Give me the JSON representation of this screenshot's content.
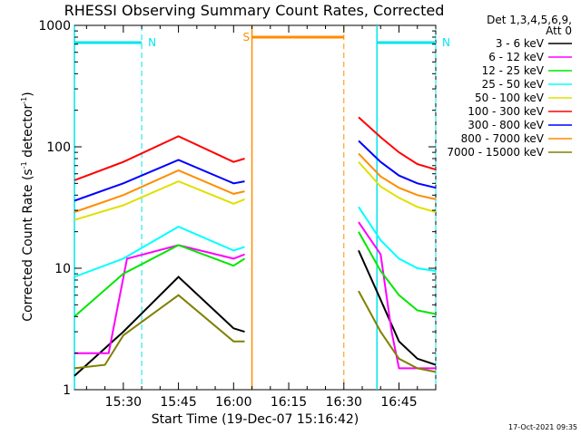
{
  "chart_data": {
    "type": "line",
    "title": "RHESSI Observing Summary Count Rates, Corrected",
    "xlabel": "Start Time (19-Dec-07 15:16:42)",
    "ylabel": "Corrected Count Rate (s⁻¹ detector⁻¹)",
    "ylabel_parts": {
      "pre": "Corrected Count Rate (s",
      "sup1": "-1",
      "mid": " detector",
      "sup2": "-1",
      "post": ")"
    },
    "y_scale": "log",
    "ylim": [
      1,
      1000
    ],
    "y_ticks": [
      1,
      10,
      100,
      1000
    ],
    "y_tick_labels": [
      "1",
      "10",
      "100",
      "1000"
    ],
    "xlim": [
      "15:16:42",
      "16:55:00"
    ],
    "x_ticks": [
      "15:30",
      "15:45",
      "16:00",
      "16:15",
      "16:30",
      "16:45"
    ],
    "grid": false,
    "legend_position": "right",
    "legend_header": [
      "Det 1,3,4,5,6,9,",
      "Att 0"
    ],
    "footer_timestamp": "17-Oct-2021 09:35",
    "annotations": [
      {
        "label": "N",
        "kind": "night",
        "color": "#00e5ee",
        "intervals": [
          [
            "15:16:42",
            "15:35:00"
          ],
          [
            "16:39:00",
            "16:55:00"
          ]
        ]
      },
      {
        "label": "S",
        "kind": "saa",
        "color": "#ff8c00",
        "intervals": [
          [
            "16:05:00",
            "16:30:00"
          ]
        ]
      }
    ],
    "data_gap": [
      "16:05:00",
      "16:34:00"
    ],
    "series": [
      {
        "name": "3 - 6 keV",
        "color": "#000000",
        "x": [
          "15:16:42",
          "15:30",
          "15:45",
          "16:00",
          "16:03",
          "16:34",
          "16:40",
          "16:45",
          "16:50",
          "16:55"
        ],
        "y": [
          1.3,
          3.0,
          8.5,
          3.2,
          3.0,
          14,
          5.5,
          2.5,
          1.8,
          1.6
        ]
      },
      {
        "name": "6 - 12 keV",
        "color": "#ff00ff",
        "x": [
          "15:16:42",
          "15:26",
          "15:31",
          "15:45",
          "16:00",
          "16:03",
          "16:34",
          "16:40",
          "16:43",
          "16:45",
          "16:55"
        ],
        "y": [
          2.0,
          2.0,
          12,
          15.5,
          12,
          13,
          24,
          13,
          3.0,
          1.5,
          1.5
        ]
      },
      {
        "name": "12 - 25 keV",
        "color": "#00e600",
        "x": [
          "15:16:42",
          "15:30",
          "15:45",
          "16:00",
          "16:03",
          "16:34",
          "16:40",
          "16:45",
          "16:50",
          "16:55"
        ],
        "y": [
          4.0,
          9.0,
          15.5,
          10.5,
          12,
          20,
          9.5,
          6.0,
          4.5,
          4.2
        ]
      },
      {
        "name": "25 - 50 keV",
        "color": "#00ffff",
        "x": [
          "15:16:42",
          "15:30",
          "15:45",
          "16:00",
          "16:03",
          "16:34",
          "16:40",
          "16:45",
          "16:50",
          "16:55"
        ],
        "y": [
          8.5,
          12,
          22,
          14,
          15,
          32,
          17,
          12,
          10,
          9.5
        ]
      },
      {
        "name": "50 - 100 keV",
        "color": "#e0e000",
        "x": [
          "15:16:42",
          "15:30",
          "15:45",
          "16:00",
          "16:03",
          "16:34",
          "16:40",
          "16:45",
          "16:50",
          "16:55"
        ],
        "y": [
          25,
          33,
          52,
          34,
          37,
          75,
          47,
          38,
          32,
          29
        ]
      },
      {
        "name": "100 - 300 keV",
        "color": "#ff0000",
        "x": [
          "15:16:42",
          "15:30",
          "15:45",
          "16:00",
          "16:03",
          "16:34",
          "16:40",
          "16:45",
          "16:50",
          "16:55"
        ],
        "y": [
          53,
          75,
          122,
          75,
          80,
          175,
          120,
          90,
          72,
          65
        ]
      },
      {
        "name": "300 - 800 keV",
        "color": "#0000ff",
        "x": [
          "15:16:42",
          "15:30",
          "15:45",
          "16:00",
          "16:03",
          "16:34",
          "16:40",
          "16:45",
          "16:50",
          "16:55"
        ],
        "y": [
          36,
          50,
          78,
          50,
          52,
          112,
          75,
          58,
          50,
          46
        ]
      },
      {
        "name": "800 - 7000 keV",
        "color": "#ff8c00",
        "x": [
          "15:16:42",
          "15:30",
          "15:45",
          "16:00",
          "16:03",
          "16:34",
          "16:40",
          "16:45",
          "16:50",
          "16:55"
        ],
        "y": [
          29,
          40,
          64,
          41,
          43,
          88,
          57,
          46,
          40,
          37
        ]
      },
      {
        "name": "7000 - 15000 keV",
        "color": "#808000",
        "x": [
          "15:16:42",
          "15:25",
          "15:30",
          "15:45",
          "16:00",
          "16:03",
          "16:34",
          "16:40",
          "16:45",
          "16:50",
          "16:55"
        ],
        "y": [
          1.5,
          1.6,
          2.8,
          6.0,
          2.5,
          2.5,
          6.5,
          3.0,
          1.8,
          1.5,
          1.4
        ]
      }
    ]
  }
}
